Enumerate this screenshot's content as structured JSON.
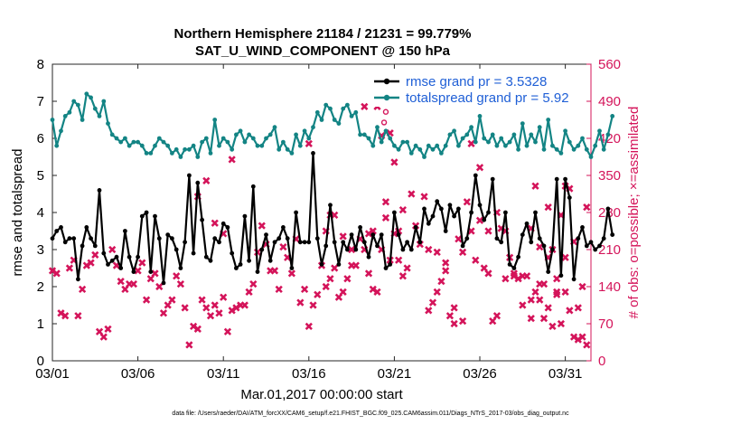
{
  "chart_data": {
    "type": "line",
    "title": [
      "Northern Hemisphere 21184 / 21231 = 99.779%",
      "SAT_U_WIND_COMPONENT @ 150 hPa"
    ],
    "xlabel": "Mar.01,2017 00:00:00 start",
    "ylabel": "rmse and totalspread",
    "ylabel_right": "# of obs: o=possible; ×=assimilated",
    "footnote": "data file: /Users/raeder/DAI/ATM_forcXX/CAM6_setup/f.e21.FHIST_BGC.f09_025.CAM6assim.011/Diags_NTrS_2017-03/obs_diag_output.nc",
    "xlim": [
      0,
      31.5
    ],
    "ylim": [
      0,
      8
    ],
    "ylim_right": [
      0,
      560
    ],
    "x_ticks": [
      0,
      5,
      10,
      15,
      20,
      25,
      30
    ],
    "x_tick_labels": [
      "03/01",
      "03/06",
      "03/11",
      "03/16",
      "03/21",
      "03/26",
      "03/31"
    ],
    "y_ticks": [
      0,
      1,
      2,
      3,
      4,
      5,
      6,
      7,
      8
    ],
    "y_tick_labels": [
      "0",
      "1",
      "2",
      "3",
      "4",
      "5",
      "6",
      "7",
      "8"
    ],
    "y_right_ticks": [
      0,
      70,
      140,
      210,
      280,
      350,
      420,
      490,
      560
    ],
    "y_right_tick_labels": [
      "0",
      "70",
      "140",
      "210",
      "280",
      "350",
      "420",
      "490",
      "560"
    ],
    "grid": false,
    "legend_position": "top-right",
    "x_step": 0.25,
    "series": [
      {
        "name": "rmse grand pr = 3.5328",
        "color": "#000000",
        "marker": "dot",
        "values": [
          3.3,
          3.5,
          3.6,
          3.2,
          3.3,
          3.3,
          2.2,
          3.1,
          3.6,
          3.3,
          3.1,
          4.6,
          2.9,
          2.6,
          2.7,
          2.8,
          2.5,
          3.5,
          2.8,
          2.4,
          2.8,
          3.9,
          4.0,
          2.4,
          3.9,
          3.3,
          2.1,
          3.4,
          3.3,
          3.0,
          2.5,
          3.2,
          5.0,
          2.9,
          4.8,
          3.8,
          2.8,
          2.7,
          3.3,
          3.2,
          3.7,
          3.6,
          2.9,
          2.5,
          2.6,
          3.9,
          2.7,
          4.7,
          2.4,
          3.0,
          3.4,
          2.7,
          3.2,
          3.3,
          3.6,
          3.3,
          2.5,
          4.0,
          3.2,
          3.2,
          3.2,
          5.6,
          3.3,
          2.6,
          3.1,
          4.2,
          3.2,
          2.6,
          3.2,
          3.0,
          3.4,
          3.0,
          3.6,
          3.2,
          2.8,
          3.4,
          3.1,
          3.4,
          2.5,
          2.6,
          4.0,
          3.4,
          3.0,
          3.2,
          3.0,
          3.6,
          3.2,
          4.1,
          3.7,
          3.9,
          4.3,
          4.1,
          3.5,
          4.2,
          3.9,
          4.1,
          3.1,
          3.3,
          4.0,
          5.0,
          4.2,
          3.8,
          4.0,
          4.9,
          3.3,
          3.2,
          4.0,
          2.6,
          2.5,
          2.8,
          3.4,
          3.7,
          3.2,
          4.0,
          3.3,
          3.1,
          2.4,
          3.0,
          4.9,
          2.3,
          4.9,
          4.4,
          2.2,
          3.3,
          3.6,
          3.1,
          3.2,
          3.0,
          3.1,
          3.3,
          4.1,
          3.4
        ]
      },
      {
        "name": "totalspread grand pr = 5.92",
        "color": "#138484",
        "marker": "dot",
        "values": [
          6.5,
          5.8,
          6.2,
          6.6,
          6.7,
          7.0,
          6.9,
          6.5,
          7.2,
          7.1,
          6.8,
          6.6,
          7.0,
          6.4,
          6.1,
          6.0,
          5.9,
          6.0,
          5.8,
          5.9,
          5.9,
          5.8,
          5.6,
          5.6,
          5.8,
          6.0,
          5.9,
          5.8,
          5.6,
          5.7,
          5.5,
          5.7,
          5.7,
          5.8,
          5.5,
          5.9,
          6.0,
          5.6,
          6.5,
          5.8,
          6.0,
          5.9,
          5.7,
          6.1,
          6.2,
          5.9,
          6.1,
          6.0,
          5.8,
          5.8,
          6.0,
          6.1,
          6.3,
          5.7,
          5.9,
          5.7,
          5.6,
          6.1,
          5.8,
          6.2,
          6.0,
          6.3,
          6.7,
          6.5,
          6.9,
          6.8,
          6.5,
          6.4,
          6.8,
          6.9,
          6.6,
          6.7,
          6.1,
          6.1,
          6.0,
          5.8,
          6.3,
          5.9,
          6.2,
          6.0,
          5.8,
          5.7,
          5.9,
          5.9,
          5.6,
          5.8,
          5.7,
          5.5,
          5.8,
          5.7,
          5.8,
          5.6,
          5.8,
          6.1,
          6.2,
          5.8,
          6.0,
          6.1,
          6.3,
          5.9,
          6.6,
          6.0,
          5.9,
          6.1,
          5.8,
          6.0,
          5.8,
          5.9,
          6.1,
          5.7,
          6.4,
          5.8,
          6.1,
          5.9,
          6.3,
          5.7,
          6.5,
          5.8,
          5.7,
          5.6,
          6.2,
          5.9,
          5.7,
          5.8,
          6.0,
          5.7,
          5.5,
          5.8,
          6.2,
          5.7,
          6.1,
          6.6
        ]
      }
    ],
    "obs_possible_outliers": [
      {
        "x": 19.4,
        "y": 450
      },
      {
        "x": 19.5,
        "y": 470
      }
    ],
    "obs_assimilated": [
      170,
      165,
      90,
      85,
      175,
      190,
      85,
      135,
      180,
      185,
      200,
      55,
      45,
      60,
      210,
      180,
      150,
      135,
      145,
      145,
      170,
      185,
      115,
      155,
      165,
      140,
      90,
      105,
      115,
      160,
      145,
      100,
      30,
      65,
      60,
      115,
      100,
      85,
      105,
      90,
      120,
      55,
      95,
      100,
      105,
      310,
      340,
      260,
      240,
      105,
      130,
      145,
      205,
      255,
      220,
      170,
      170,
      135,
      215,
      195,
      165,
      230,
      110,
      135,
      65,
      105,
      125,
      180,
      140,
      155,
      175,
      120,
      130,
      155,
      180,
      180,
      230,
      210,
      240,
      135,
      130,
      210,
      270,
      190,
      240,
      245,
      285,
      480,
      165,
      245,
      480,
      425,
      300,
      430,
      375,
      190,
      380,
      410,
      245,
      275,
      275,
      235,
      210,
      160,
      175,
      315,
      255,
      220,
      310,
      210,
      110,
      205,
      150,
      185,
      85,
      100,
      230,
      75,
      300,
      245,
      190,
      365,
      175,
      245,
      75,
      85,
      250,
      245,
      195,
      165,
      155,
      160,
      160,
      115,
      130,
      115,
      80,
      290,
      210,
      130,
      275,
      330,
      95,
      225,
      100,
      140,
      290,
      250,
      330,
      145,
      145,
      100,
      65,
      125,
      70,
      195,
      325,
      45,
      40,
      45,
      30,
      95,
      130,
      170,
      70,
      205,
      410,
      265,
      165,
      280,
      155,
      160,
      105,
      80,
      215,
      195,
      155,
      130
    ],
    "obs_assimilated_x": [
      0,
      0.25,
      0.5,
      0.75,
      1.0,
      1.25,
      1.5,
      1.75,
      2.0,
      2.25,
      2.5,
      2.75,
      3.0,
      3.25,
      3.5,
      3.75,
      4.0,
      4.25,
      4.5,
      4.75,
      5.0,
      5.25,
      5.5,
      5.75,
      6.0,
      6.25,
      6.5,
      6.75,
      7.0,
      7.25,
      7.5,
      7.75,
      8.0,
      8.25,
      8.5,
      8.75,
      9.0,
      9.25,
      9.5,
      9.75,
      10.0,
      10.25,
      10.5,
      10.75,
      11.0,
      8.5,
      9.0,
      9.5,
      10.0,
      11.25,
      11.5,
      11.75,
      12.0,
      12.25,
      12.5,
      12.75,
      13.0,
      13.25,
      13.5,
      13.75,
      14.0,
      14.25,
      14.5,
      14.75,
      15.0,
      15.25,
      15.5,
      15.75,
      16.0,
      16.25,
      16.5,
      16.75,
      17.0,
      17.25,
      17.5,
      17.75,
      18.0,
      18.25,
      18.5,
      18.75,
      19.0,
      19.25,
      19.5,
      19.75,
      20.0,
      20.25,
      20.5,
      18.25,
      18.5,
      18.75,
      19.0,
      19.25,
      19.5,
      19.75,
      20.0,
      20.25,
      10.5,
      15.0,
      16.0,
      16.25,
      16.5,
      17.0,
      17.5,
      20.5,
      20.75,
      21.0,
      21.25,
      21.5,
      21.75,
      22.0,
      22.25,
      22.5,
      22.75,
      23.0,
      23.25,
      23.5,
      23.75,
      24.0,
      24.25,
      24.5,
      24.75,
      25.0,
      25.25,
      25.5,
      25.75,
      26.0,
      26.25,
      26.5,
      26.75,
      27.0,
      27.25,
      27.5,
      27.75,
      28.0,
      28.25,
      28.5,
      28.75,
      29.0,
      29.25,
      29.5,
      29.75,
      30.0,
      30.25,
      30.5,
      30.75,
      31.0,
      31.25,
      28.0,
      28.25,
      28.5,
      28.75,
      29.0,
      29.25,
      29.5,
      29.75,
      30.0,
      30.25,
      30.5,
      30.75,
      31.0,
      31.25,
      22.0,
      22.5,
      23.0,
      23.5,
      24.0,
      24.5,
      25.0,
      25.5,
      26.0,
      26.5,
      27.0,
      27.5,
      28.0,
      28.5,
      29.0,
      29.5,
      30.0,
      30.5,
      31.0,
      31.25
    ]
  }
}
